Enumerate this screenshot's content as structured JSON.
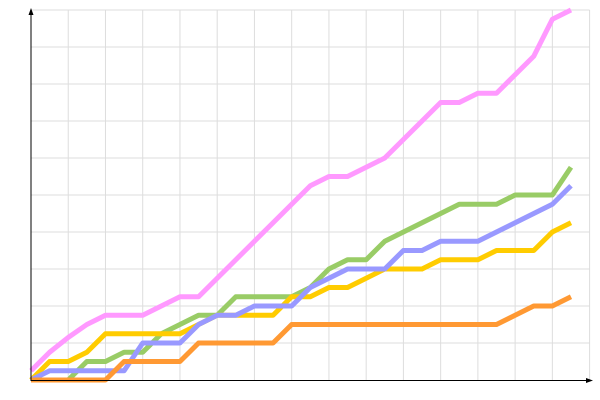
{
  "chart_data": {
    "type": "line",
    "title": "",
    "xlabel": "",
    "ylabel": "",
    "x": [
      0,
      1,
      2,
      3,
      4,
      5,
      6,
      7,
      8,
      9,
      10,
      11,
      12,
      13,
      14,
      15,
      16,
      17,
      18,
      19,
      20,
      21,
      22,
      23,
      24,
      25,
      26,
      27,
      28,
      29
    ],
    "xlim": [
      0,
      30
    ],
    "ylim": [
      0,
      20
    ],
    "grid": true,
    "legend": "none",
    "series": [
      {
        "color": "#ff99ff",
        "values": [
          0.5,
          1.5,
          2.3,
          3,
          3.5,
          3.5,
          3.5,
          4,
          4.5,
          4.5,
          5.5,
          6.5,
          7.5,
          8.5,
          9.5,
          10.5,
          11,
          11,
          11.5,
          12,
          13,
          14,
          15,
          15,
          15.5,
          15.5,
          16.5,
          17.5,
          19.5,
          20
        ]
      },
      {
        "color": "#99cc66",
        "values": [
          0,
          0,
          0,
          1,
          1,
          1.5,
          1.5,
          2.5,
          3,
          3.5,
          3.5,
          4.5,
          4.5,
          4.5,
          4.5,
          5,
          6,
          6.5,
          6.5,
          7.5,
          8,
          8.5,
          9,
          9.5,
          9.5,
          9.5,
          10,
          10,
          10,
          11.5
        ]
      },
      {
        "color": "#ffcc00",
        "values": [
          0,
          1,
          1,
          1.5,
          2.5,
          2.5,
          2.5,
          2.5,
          2.5,
          3,
          3.5,
          3.5,
          3.5,
          3.5,
          4.5,
          4.5,
          5,
          5,
          5.5,
          6,
          6,
          6,
          6.5,
          6.5,
          6.5,
          7,
          7,
          7,
          8,
          8.5
        ]
      },
      {
        "color": "#9999ff",
        "values": [
          0,
          0.5,
          0.5,
          0.5,
          0.5,
          0.5,
          2,
          2,
          2,
          3,
          3.5,
          3.5,
          4,
          4,
          4,
          5,
          5.5,
          6,
          6,
          6,
          7,
          7,
          7.5,
          7.5,
          7.5,
          8,
          8.5,
          9,
          9.5,
          10.5
        ]
      },
      {
        "color": "#ff9933",
        "values": [
          0,
          0,
          0,
          0,
          0,
          1,
          1,
          1,
          1,
          2,
          2,
          2,
          2,
          2,
          3,
          3,
          3,
          3,
          3,
          3,
          3,
          3,
          3,
          3,
          3,
          3,
          3.5,
          4,
          4,
          4.5
        ]
      }
    ]
  }
}
